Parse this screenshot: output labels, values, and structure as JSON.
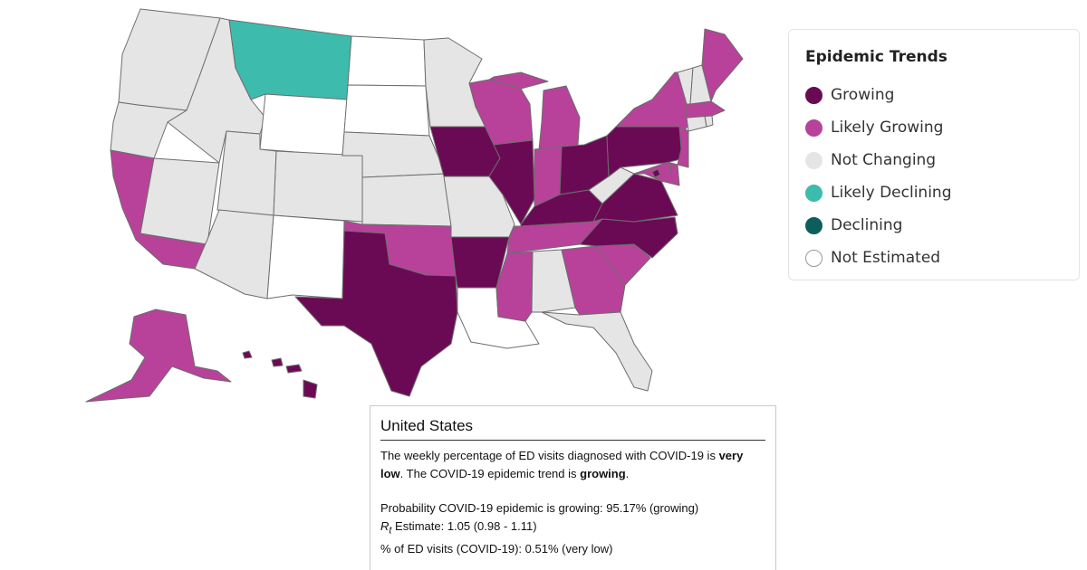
{
  "map": {
    "colors": {
      "Growing": "#6b0a54",
      "Likely Growing": "#b8429a",
      "Not Changing": "#e5e5e5",
      "Likely Declining": "#3dbcae",
      "Declining": "#0d5e5b",
      "Not Estimated": "#ffffff"
    },
    "states": [
      {
        "id": "WA",
        "trend": "Not Changing"
      },
      {
        "id": "OR",
        "trend": "Not Changing"
      },
      {
        "id": "CA",
        "trend": "Likely Growing"
      },
      {
        "id": "NV",
        "trend": "Not Changing"
      },
      {
        "id": "ID",
        "trend": "Not Changing"
      },
      {
        "id": "MT",
        "trend": "Likely Declining"
      },
      {
        "id": "WY",
        "trend": "Not Estimated"
      },
      {
        "id": "UT",
        "trend": "Not Changing"
      },
      {
        "id": "AZ",
        "trend": "Not Changing"
      },
      {
        "id": "CO",
        "trend": "Not Changing"
      },
      {
        "id": "NM",
        "trend": "Not Estimated"
      },
      {
        "id": "ND",
        "trend": "Not Estimated"
      },
      {
        "id": "SD",
        "trend": "Not Estimated"
      },
      {
        "id": "NE",
        "trend": "Not Changing"
      },
      {
        "id": "KS",
        "trend": "Not Changing"
      },
      {
        "id": "OK",
        "trend": "Likely Growing"
      },
      {
        "id": "TX",
        "trend": "Growing"
      },
      {
        "id": "MN",
        "trend": "Not Changing"
      },
      {
        "id": "IA",
        "trend": "Growing"
      },
      {
        "id": "MO",
        "trend": "Not Changing"
      },
      {
        "id": "AR",
        "trend": "Growing"
      },
      {
        "id": "LA",
        "trend": "Not Estimated"
      },
      {
        "id": "WI",
        "trend": "Likely Growing"
      },
      {
        "id": "IL",
        "trend": "Growing"
      },
      {
        "id": "MI",
        "trend": "Likely Growing"
      },
      {
        "id": "IN",
        "trend": "Likely Growing"
      },
      {
        "id": "OH",
        "trend": "Growing"
      },
      {
        "id": "KY",
        "trend": "Growing"
      },
      {
        "id": "TN",
        "trend": "Likely Growing"
      },
      {
        "id": "MS",
        "trend": "Likely Growing"
      },
      {
        "id": "AL",
        "trend": "Not Changing"
      },
      {
        "id": "GA",
        "trend": "Likely Growing"
      },
      {
        "id": "FL",
        "trend": "Not Changing"
      },
      {
        "id": "SC",
        "trend": "Likely Growing"
      },
      {
        "id": "NC",
        "trend": "Growing"
      },
      {
        "id": "VA",
        "trend": "Growing"
      },
      {
        "id": "WV",
        "trend": "Not Changing"
      },
      {
        "id": "PA",
        "trend": "Growing"
      },
      {
        "id": "NY",
        "trend": "Likely Growing"
      },
      {
        "id": "NJ",
        "trend": "Likely Growing"
      },
      {
        "id": "DE",
        "trend": "Likely Growing"
      },
      {
        "id": "MD",
        "trend": "Likely Growing"
      },
      {
        "id": "DC",
        "trend": "Growing"
      },
      {
        "id": "CT",
        "trend": "Not Changing"
      },
      {
        "id": "RI",
        "trend": "Not Changing"
      },
      {
        "id": "MA",
        "trend": "Likely Growing"
      },
      {
        "id": "VT",
        "trend": "Not Changing"
      },
      {
        "id": "NH",
        "trend": "Not Changing"
      },
      {
        "id": "ME",
        "trend": "Likely Growing"
      },
      {
        "id": "AK",
        "trend": "Likely Growing"
      },
      {
        "id": "HI",
        "trend": "Growing"
      }
    ]
  },
  "legend": {
    "title": "Epidemic Trends",
    "items": [
      {
        "label": "Growing",
        "color": "#6b0a54"
      },
      {
        "label": "Likely Growing",
        "color": "#b8429a"
      },
      {
        "label": "Not Changing",
        "color": "#e5e5e5"
      },
      {
        "label": "Likely Declining",
        "color": "#3dbcae"
      },
      {
        "label": "Declining",
        "color": "#0d5e5b"
      },
      {
        "label": "Not Estimated",
        "color": "#ffffff"
      }
    ]
  },
  "popup": {
    "title": "United States",
    "desc_pre": "The weekly percentage of ED visits diagnosed with COVID-19 is ",
    "desc_level": "very low",
    "desc_mid": ". The COVID-19 epidemic trend is ",
    "desc_trend": "growing",
    "desc_end": ".",
    "probability": "Probability COVID-19 epidemic is growing: 95.17% (growing)",
    "rt_symbol": "R",
    "rt_sub": "t",
    "rt_text": " Estimate: 1.05 (0.98 - 1.11)",
    "ed_visits": "% of ED visits (COVID-19): 0.51% (very low)"
  }
}
